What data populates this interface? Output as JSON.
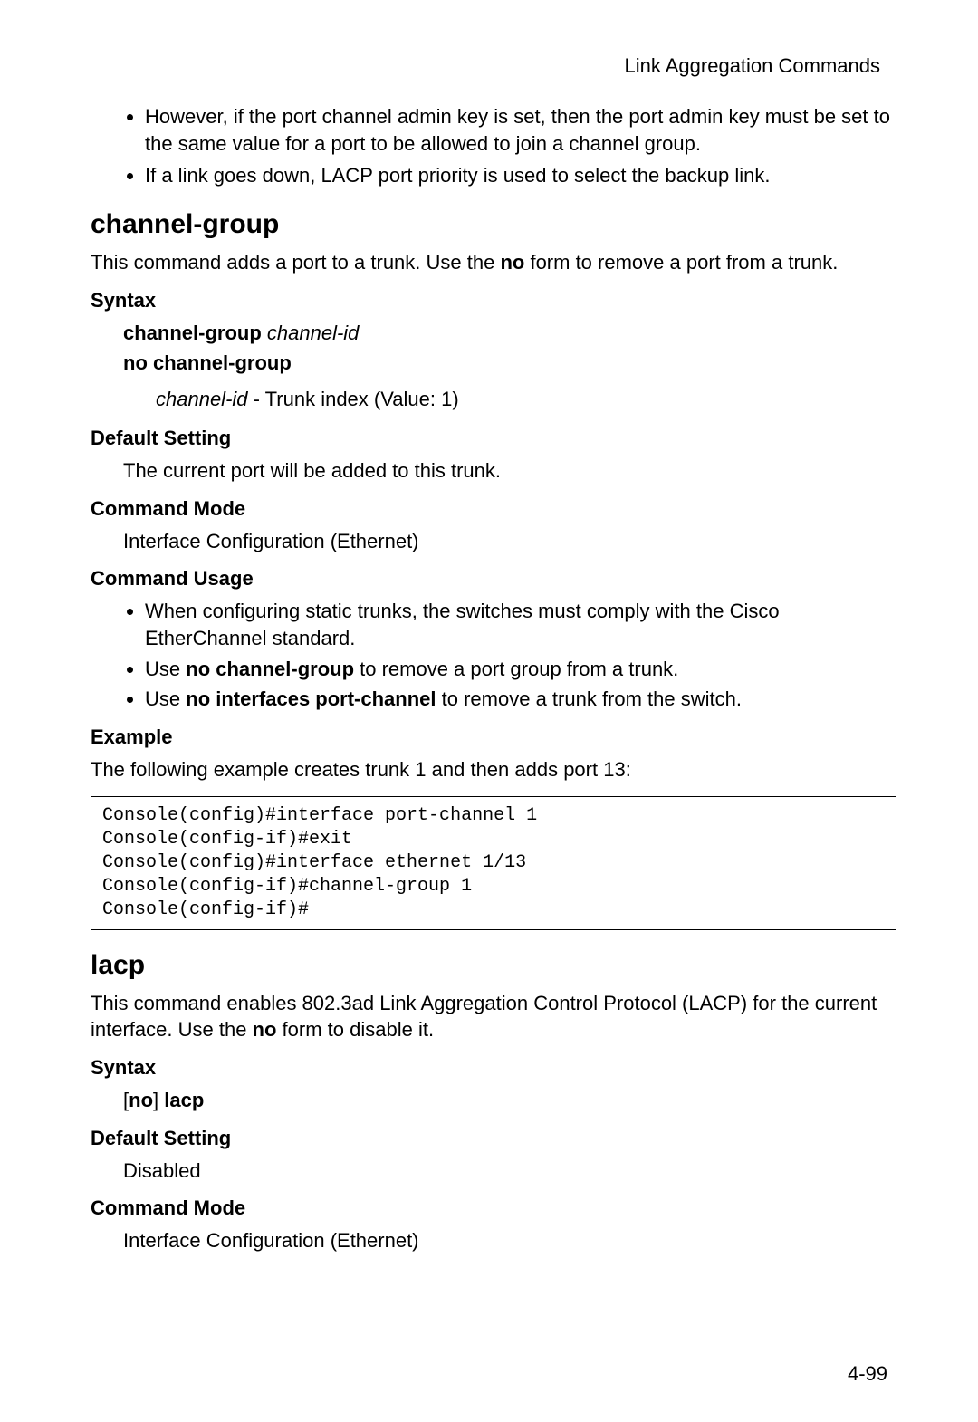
{
  "header": {
    "right": "Link Aggregation Commands"
  },
  "top_bullets": [
    "However, if the port channel admin key is set, then the port admin key must be set to the same value for a port to be allowed to join a channel group.",
    "If a link goes down, LACP port priority is used to select the backup link."
  ],
  "channel_group": {
    "title": "channel-group",
    "intro_pre": "This command adds a port to a trunk. Use the ",
    "intro_bold": "no",
    "intro_post": " form to remove a port from a trunk.",
    "syntax": {
      "heading": "Syntax",
      "line1_bold": "channel-group",
      "line1_italic": "channel-id",
      "line2_bold": "no channel-group",
      "param_italic": "channel-id",
      "param_post": " - Trunk index (Value: 1)"
    },
    "default_setting": {
      "heading": "Default Setting",
      "text": "The current port will be added to this trunk."
    },
    "command_mode": {
      "heading": "Command Mode",
      "text": "Interface Configuration (Ethernet)"
    },
    "command_usage": {
      "heading": "Command Usage",
      "b1": "When configuring static trunks, the switches must comply with the Cisco EtherChannel standard.",
      "b2_pre": "Use ",
      "b2_bold": "no channel-group",
      "b2_post": " to remove a port group from a trunk.",
      "b3_pre": "Use ",
      "b3_bold": "no interfaces port-channel",
      "b3_post": " to remove a trunk from the switch."
    },
    "example": {
      "heading": "Example",
      "text": "The following example creates trunk 1 and then adds port 13:",
      "code": "Console(config)#interface port-channel 1\nConsole(config-if)#exit\nConsole(config)#interface ethernet 1/13\nConsole(config-if)#channel-group 1\nConsole(config-if)#"
    }
  },
  "lacp": {
    "title": "lacp",
    "intro_pre": "This command enables 802.3ad Link Aggregation Control Protocol (LACP) for the current interface. Use the ",
    "intro_bold": "no",
    "intro_post": " form to disable it.",
    "syntax": {
      "heading": "Syntax",
      "bracket_open": "[",
      "no": "no",
      "bracket_close": "]",
      "lacp": "lacp"
    },
    "default_setting": {
      "heading": "Default Setting",
      "text": "Disabled"
    },
    "command_mode": {
      "heading": "Command Mode",
      "text": "Interface Configuration (Ethernet)"
    }
  },
  "page_number": "4-99"
}
